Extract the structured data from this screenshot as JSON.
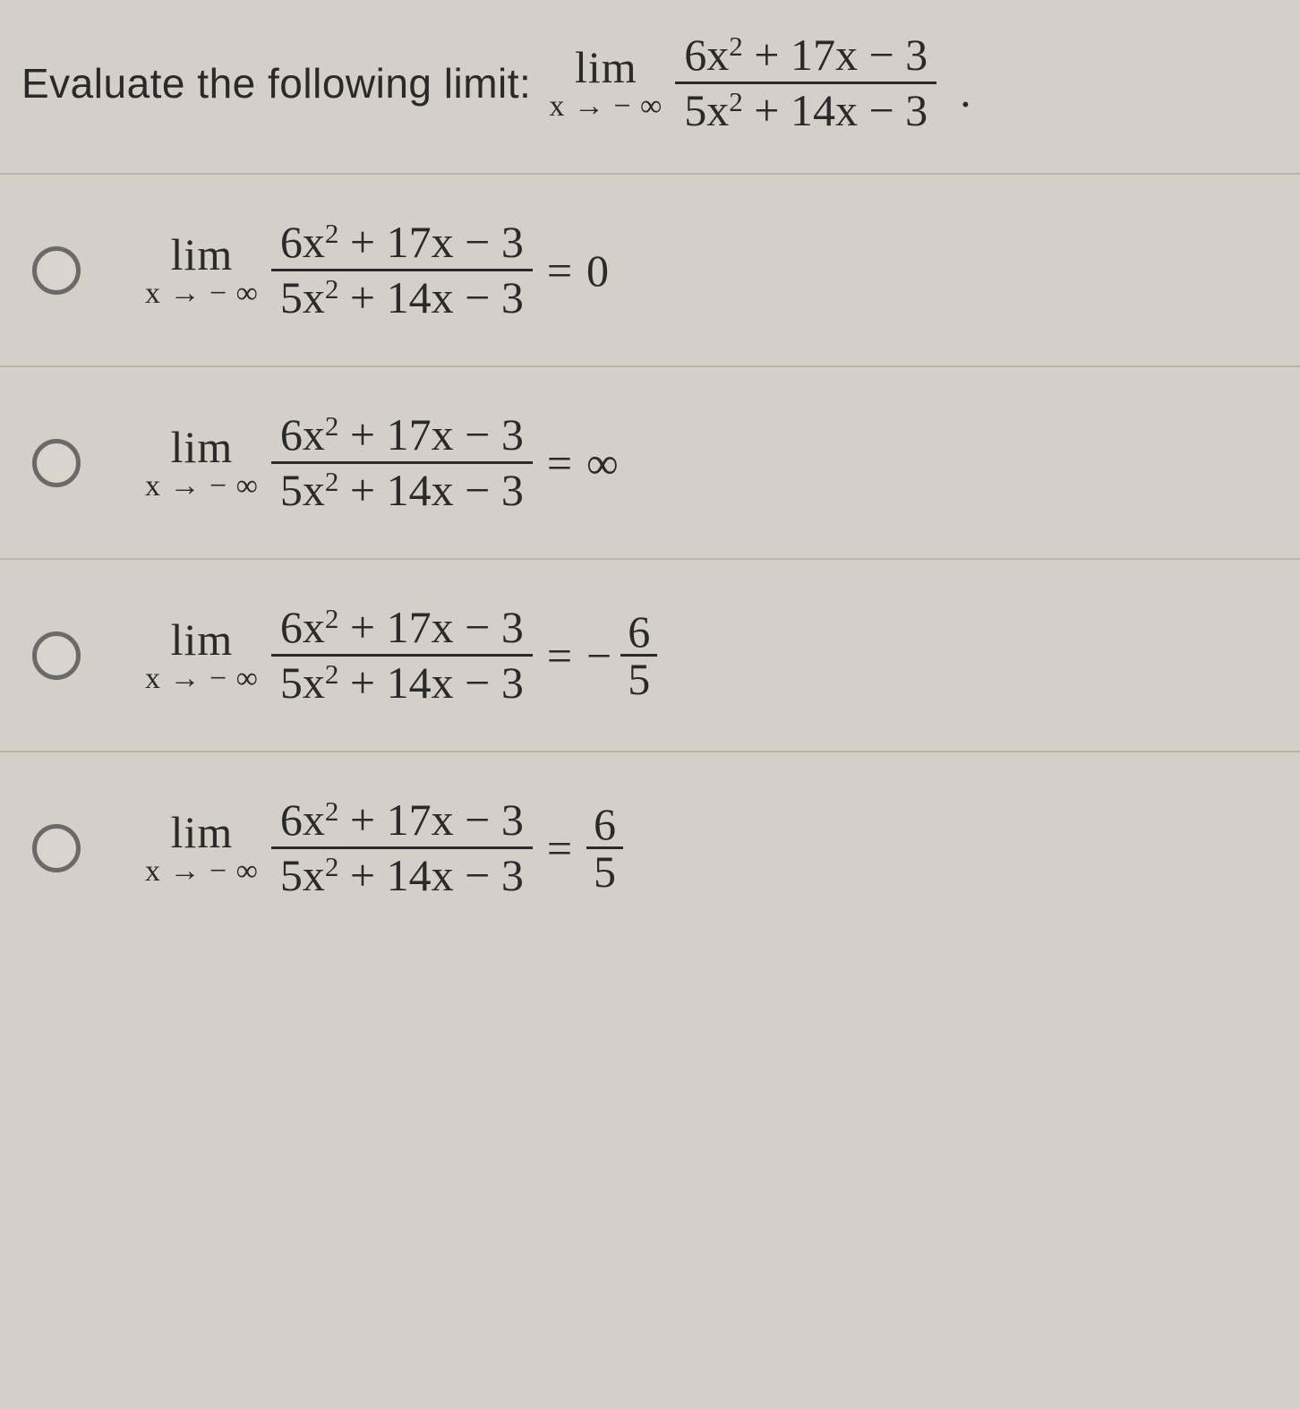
{
  "colors": {
    "background": "#d4cfc8",
    "text": "#2a2a2a",
    "divider": "#b8b3ab",
    "radio_border": "#6a6a6a",
    "numerator_text": "6x² + 17x − 3",
    "denominator_text": "5x² + 14x − 3"
  },
  "fonts": {
    "body": "Arial, Helvetica, sans-serif",
    "math": "Times New Roman, serif",
    "prompt_size_pt": 35,
    "math_size_pt": 38,
    "sub_size_pt": 26
  },
  "question": {
    "prompt": "Evaluate the following limit:",
    "lim_label": "lim",
    "lim_sub": "x → − ∞",
    "numerator": "6x<sup>2</sup> + 17x − 3",
    "denominator": "5x<sup>2</sup> + 14x − 3",
    "trailing_period": "."
  },
  "options": [
    {
      "id": "opt-0",
      "lim_label": "lim",
      "lim_sub": "x → − ∞",
      "numerator": "6x<sup>2</sup> + 17x − 3",
      "denominator": "5x<sup>2</sup> + 14x − 3",
      "equals": "=",
      "rhs_type": "plain",
      "rhs_plain": "0"
    },
    {
      "id": "opt-inf",
      "lim_label": "lim",
      "lim_sub": "x → − ∞",
      "numerator": "6x<sup>2</sup> + 17x − 3",
      "denominator": "5x<sup>2</sup> + 14x − 3",
      "equals": "=",
      "rhs_type": "plain",
      "rhs_plain": "∞"
    },
    {
      "id": "opt-neg65",
      "lim_label": "lim",
      "lim_sub": "x → − ∞",
      "numerator": "6x<sup>2</sup> + 17x − 3",
      "denominator": "5x<sup>2</sup> + 14x − 3",
      "equals": "=",
      "rhs_type": "negfrac",
      "rhs_neg": "−",
      "rhs_num": "6",
      "rhs_den": "5"
    },
    {
      "id": "opt-65",
      "lim_label": "lim",
      "lim_sub": "x → − ∞",
      "numerator": "6x<sup>2</sup> + 17x − 3",
      "denominator": "5x<sup>2</sup> + 14x − 3",
      "equals": "=",
      "rhs_type": "frac",
      "rhs_num": "6",
      "rhs_den": "5"
    }
  ]
}
